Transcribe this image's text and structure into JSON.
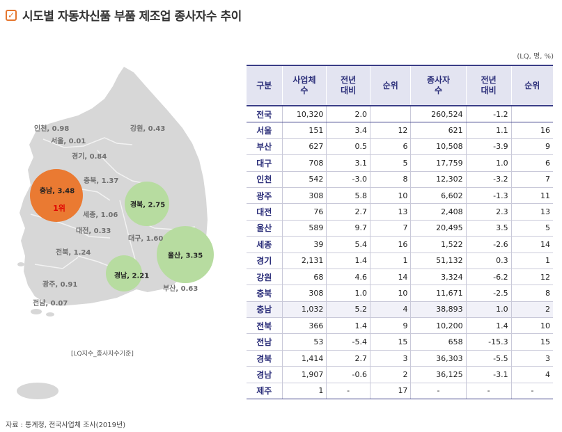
{
  "title": "시도별 자동차신품 부품 제조업 종사자수 추이",
  "unit": "(LQ, 명, %)",
  "map_note": "[LQ지수_종사자수기준]",
  "source": "자료 : 통계청, 전국사업체 조사(2019년)",
  "colors": {
    "land": "#d7d7d7",
    "top": "#ea7a32",
    "bubble": "#b7dca0",
    "header_bg": "#e3e4f1",
    "header_text": "#2c2f7a"
  },
  "map": {
    "regions": [
      {
        "label": "인천, 0.98"
      },
      {
        "label": "서울, 0.01"
      },
      {
        "label": "경기, 0.84"
      },
      {
        "label": "강원, 0.43"
      },
      {
        "label": "충북, 1.37"
      },
      {
        "label": "세종, 1.06"
      },
      {
        "label": "대전, 0.33"
      },
      {
        "label": "대구, 1.60"
      },
      {
        "label": "전북, 1.24"
      },
      {
        "label": "광주, 0.91"
      },
      {
        "label": "전남, 0.07"
      },
      {
        "label": "부산, 0.63"
      }
    ],
    "bubbles": [
      {
        "label": "충남, 3.48",
        "rank": "1위",
        "value": 3.48
      },
      {
        "label": "경북, 2.75",
        "value": 2.75
      },
      {
        "label": "울산, 3.35",
        "value": 3.35
      },
      {
        "label": "경남, 2.21",
        "value": 2.21
      }
    ]
  },
  "chart_data": {
    "type": "table",
    "columns": [
      "구분",
      "사업체수",
      "전년대비",
      "순위",
      "종사자수",
      "전년대비",
      "순위"
    ],
    "rows": [
      [
        "전국",
        "10,320",
        "2.0",
        "",
        "260,524",
        "-1.2",
        ""
      ],
      [
        "서울",
        "151",
        "3.4",
        "12",
        "621",
        "1.1",
        "16"
      ],
      [
        "부산",
        "627",
        "0.5",
        "6",
        "10,508",
        "-3.9",
        "9"
      ],
      [
        "대구",
        "708",
        "3.1",
        "5",
        "17,759",
        "1.0",
        "6"
      ],
      [
        "인천",
        "542",
        "-3.0",
        "8",
        "12,302",
        "-3.2",
        "7"
      ],
      [
        "광주",
        "308",
        "5.8",
        "10",
        "6,602",
        "-1.3",
        "11"
      ],
      [
        "대전",
        "76",
        "2.7",
        "13",
        "2,408",
        "2.3",
        "13"
      ],
      [
        "울산",
        "589",
        "9.7",
        "7",
        "20,495",
        "3.5",
        "5"
      ],
      [
        "세종",
        "39",
        "5.4",
        "16",
        "1,522",
        "-2.6",
        "14"
      ],
      [
        "경기",
        "2,131",
        "1.4",
        "1",
        "51,132",
        "0.3",
        "1"
      ],
      [
        "강원",
        "68",
        "4.6",
        "14",
        "3,324",
        "-6.2",
        "12"
      ],
      [
        "충북",
        "308",
        "1.0",
        "10",
        "11,671",
        "-2.5",
        "8"
      ],
      [
        "충남",
        "1,032",
        "5.2",
        "4",
        "38,893",
        "1.0",
        "2"
      ],
      [
        "전북",
        "366",
        "1.4",
        "9",
        "10,200",
        "1.4",
        "10"
      ],
      [
        "전남",
        "53",
        "-5.4",
        "15",
        "658",
        "-15.3",
        "15"
      ],
      [
        "경북",
        "1,414",
        "2.7",
        "3",
        "36,303",
        "-5.5",
        "3"
      ],
      [
        "경남",
        "1,907",
        "-0.6",
        "2",
        "36,125",
        "-3.1",
        "4"
      ],
      [
        "제주",
        "1",
        "-",
        "17",
        "-",
        "-",
        "-"
      ]
    ]
  }
}
